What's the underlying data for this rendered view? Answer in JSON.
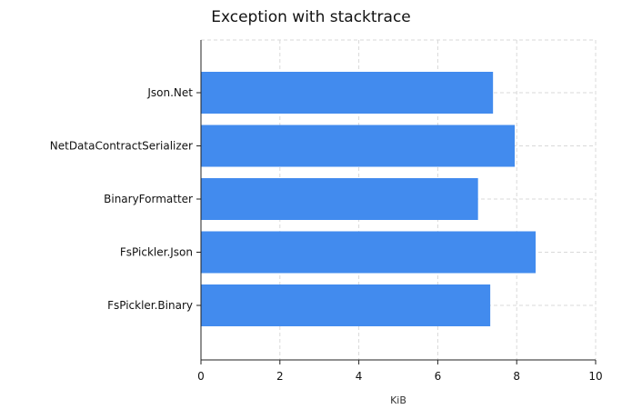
{
  "chart_data": {
    "type": "bar",
    "orientation": "horizontal",
    "title": "Exception with stacktrace",
    "xlabel": "KiB",
    "ylabel": "",
    "categories": [
      "Json.Net",
      "NetDataContractSerializer",
      "BinaryFormatter",
      "FsPickler.Json",
      "FsPickler.Binary"
    ],
    "values": [
      7.4,
      7.95,
      7.02,
      8.48,
      7.33
    ],
    "xlim": [
      0,
      10
    ],
    "xticks": [
      0,
      2,
      4,
      6,
      8,
      10
    ],
    "grid": true,
    "legend": "none",
    "bar_color": "#428bee"
  }
}
